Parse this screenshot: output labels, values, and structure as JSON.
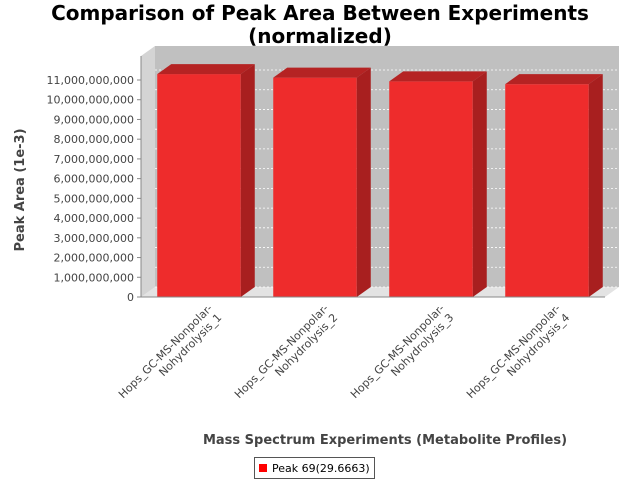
{
  "chart_data": {
    "type": "bar",
    "title_lines": [
      "Comparison of Peak Area Between Experiments",
      "(normalized)"
    ],
    "xlabel": "Mass Spectrum Experiments (Metabolite Profiles)",
    "ylabel": "Peak Area (1e-3)",
    "categories": [
      [
        "Hops_GC-MS-Nonpolar-",
        "Nohydrolysis_1"
      ],
      [
        "Hops_GC-MS-Nonpolar-",
        "Nohydrolysis_2"
      ],
      [
        "Hops_GC-MS-Nonpolar-",
        "Nohydrolysis_3"
      ],
      [
        "Hops_GC-MS-Nonpolar-",
        "Nohydrolysis_4"
      ]
    ],
    "series": [
      {
        "name": "Peak 69(29.6663)",
        "color": "#ff0000",
        "values": [
          11300000000,
          11120000000,
          10930000000,
          10790000000
        ]
      }
    ],
    "ylim": [
      0,
      11000000000
    ],
    "yticks": [
      0,
      1000000000,
      2000000000,
      3000000000,
      4000000000,
      5000000000,
      6000000000,
      7000000000,
      8000000000,
      9000000000,
      10000000000,
      11000000000
    ],
    "ytick_labels": [
      "0",
      "1,000,000,000",
      "2,000,000,000",
      "3,000,000,000",
      "4,000,000,000",
      "5,000,000,000",
      "6,000,000,000",
      "7,000,000,000",
      "8,000,000,000",
      "9,000,000,000",
      "10,000,000,000",
      "11,000,000,000"
    ],
    "grid": true,
    "legend_position": "bottom",
    "plot_background": "#c0c0c0"
  }
}
